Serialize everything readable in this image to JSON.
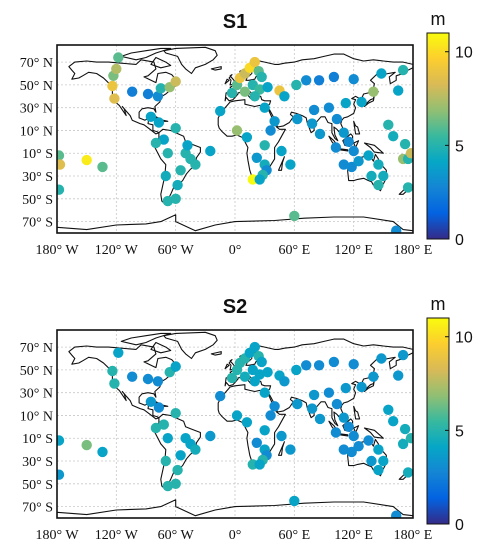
{
  "colorbar": {
    "colormap": "parula",
    "stops": [
      "#352a87",
      "#0363e1",
      "#1485d4",
      "#06a7c6",
      "#38b99e",
      "#92bf73",
      "#d9ba56",
      "#fcce2e",
      "#f9fb0e"
    ],
    "unit": "m",
    "range": [
      0,
      11
    ],
    "ticks": [
      0,
      5,
      10
    ],
    "tick_labels": [
      "0",
      "5",
      "10"
    ]
  },
  "axes": {
    "x_ticks": [
      -180,
      -120,
      -60,
      0,
      60,
      120,
      180
    ],
    "x_tick_labels": [
      "180° W",
      "120° W",
      "60° W",
      "0°",
      "60° E",
      "120° E",
      "180° E"
    ],
    "y_ticks": [
      70,
      50,
      30,
      10,
      -10,
      -30,
      -50,
      -70
    ],
    "y_tick_labels": [
      "70° N",
      "50° N",
      "30° N",
      "10° N",
      "10° S",
      "30° S",
      "50° S",
      "70° S"
    ],
    "xlim": [
      -180,
      180
    ],
    "ylim": [
      -80,
      85
    ],
    "grid": true
  },
  "chart_data": [
    {
      "type": "scatter",
      "title": "S1",
      "xlabel": "",
      "ylabel": "",
      "points": [
        {
          "lon": -178,
          "lat": -12,
          "v": 6
        },
        {
          "lon": -177,
          "lat": -20,
          "v": 8.5
        },
        {
          "lon": -178,
          "lat": -42,
          "v": 5
        },
        {
          "lon": -150,
          "lat": -16,
          "v": 10.5
        },
        {
          "lon": -134,
          "lat": -22,
          "v": 6
        },
        {
          "lon": -124,
          "lat": 49,
          "v": 9
        },
        {
          "lon": -122,
          "lat": 38,
          "v": 8.5
        },
        {
          "lon": -123,
          "lat": 58,
          "v": 6.5
        },
        {
          "lon": -118,
          "lat": 74,
          "v": 6
        },
        {
          "lon": -120,
          "lat": 64,
          "v": 7.5
        },
        {
          "lon": -104,
          "lat": 44,
          "v": 2.5
        },
        {
          "lon": -88,
          "lat": 42,
          "v": 2.5
        },
        {
          "lon": -78,
          "lat": 40,
          "v": 3
        },
        {
          "lon": -75,
          "lat": 47,
          "v": 5
        },
        {
          "lon": -66,
          "lat": 48,
          "v": 7
        },
        {
          "lon": -60,
          "lat": 53,
          "v": 8
        },
        {
          "lon": -85,
          "lat": 22,
          "v": 4
        },
        {
          "lon": -77,
          "lat": 17,
          "v": 4
        },
        {
          "lon": -60,
          "lat": 12,
          "v": 5
        },
        {
          "lon": -72,
          "lat": 2,
          "v": 4
        },
        {
          "lon": -80,
          "lat": -1,
          "v": 5
        },
        {
          "lon": -68,
          "lat": -10,
          "v": 5
        },
        {
          "lon": -50,
          "lat": -10,
          "v": 5
        },
        {
          "lon": -45,
          "lat": -15,
          "v": 5
        },
        {
          "lon": -40,
          "lat": -20,
          "v": 5
        },
        {
          "lon": -55,
          "lat": -25,
          "v": 5
        },
        {
          "lon": -70,
          "lat": -30,
          "v": 4.5
        },
        {
          "lon": -48,
          "lat": -3,
          "v": 4
        },
        {
          "lon": -58,
          "lat": -38,
          "v": 4.5
        },
        {
          "lon": -68,
          "lat": -52,
          "v": 5
        },
        {
          "lon": -60,
          "lat": -50,
          "v": 5
        },
        {
          "lon": -15,
          "lat": 27,
          "v": 4
        },
        {
          "lon": -25,
          "lat": -8,
          "v": 4
        },
        {
          "lon": -3,
          "lat": 43,
          "v": 5
        },
        {
          "lon": 2,
          "lat": 50,
          "v": 6
        },
        {
          "lon": 5,
          "lat": 56,
          "v": 9
        },
        {
          "lon": 10,
          "lat": 60,
          "v": 8
        },
        {
          "lon": 15,
          "lat": 65,
          "v": 10
        },
        {
          "lon": 20,
          "lat": 70,
          "v": 9
        },
        {
          "lon": 24,
          "lat": 62,
          "v": 6
        },
        {
          "lon": 27,
          "lat": 57,
          "v": 5
        },
        {
          "lon": 18,
          "lat": 50,
          "v": 5
        },
        {
          "lon": 25,
          "lat": 46,
          "v": 5.5
        },
        {
          "lon": 10,
          "lat": 44,
          "v": 6.5
        },
        {
          "lon": 20,
          "lat": 40,
          "v": 5
        },
        {
          "lon": 33,
          "lat": 48,
          "v": 4
        },
        {
          "lon": 45,
          "lat": 45,
          "v": 9
        },
        {
          "lon": 50,
          "lat": 40,
          "v": 4
        },
        {
          "lon": 30,
          "lat": 30,
          "v": 4
        },
        {
          "lon": 2,
          "lat": 10,
          "v": 7
        },
        {
          "lon": 12,
          "lat": 4,
          "v": 4
        },
        {
          "lon": 22,
          "lat": -14,
          "v": 3.5
        },
        {
          "lon": 30,
          "lat": -3,
          "v": 5
        },
        {
          "lon": 36,
          "lat": 10,
          "v": 3
        },
        {
          "lon": 40,
          "lat": 18,
          "v": 3.5
        },
        {
          "lon": 47,
          "lat": -8,
          "v": 4
        },
        {
          "lon": 30,
          "lat": -20,
          "v": 4.5
        },
        {
          "lon": 32,
          "lat": -25,
          "v": 3
        },
        {
          "lon": 28,
          "lat": -29,
          "v": 5
        },
        {
          "lon": 18,
          "lat": -33,
          "v": 11
        },
        {
          "lon": 25,
          "lat": -33,
          "v": 4
        },
        {
          "lon": 56,
          "lat": -20,
          "v": 4
        },
        {
          "lon": 63,
          "lat": 20,
          "v": 3.5
        },
        {
          "lon": 62,
          "lat": 50,
          "v": 5
        },
        {
          "lon": 72,
          "lat": 54,
          "v": 3
        },
        {
          "lon": 85,
          "lat": 54,
          "v": 2.5
        },
        {
          "lon": 100,
          "lat": 57,
          "v": 2.5
        },
        {
          "lon": 120,
          "lat": 55,
          "v": 3
        },
        {
          "lon": 140,
          "lat": 44,
          "v": 7
        },
        {
          "lon": 128,
          "lat": 35,
          "v": 4
        },
        {
          "lon": 112,
          "lat": 34,
          "v": 4
        },
        {
          "lon": 95,
          "lat": 30,
          "v": 3
        },
        {
          "lon": 80,
          "lat": 28,
          "v": 3
        },
        {
          "lon": 78,
          "lat": 16,
          "v": 3.5
        },
        {
          "lon": 86,
          "lat": 7,
          "v": 3.5
        },
        {
          "lon": 103,
          "lat": 20,
          "v": 3
        },
        {
          "lon": 110,
          "lat": 8,
          "v": 3.5
        },
        {
          "lon": 115,
          "lat": 0,
          "v": 3
        },
        {
          "lon": 102,
          "lat": -5,
          "v": 3
        },
        {
          "lon": 120,
          "lat": -8,
          "v": 3
        },
        {
          "lon": 110,
          "lat": -20,
          "v": 3
        },
        {
          "lon": 118,
          "lat": -22,
          "v": 3
        },
        {
          "lon": 125,
          "lat": -17,
          "v": 3.5
        },
        {
          "lon": 135,
          "lat": -12,
          "v": 4
        },
        {
          "lon": 145,
          "lat": -20,
          "v": 4.5
        },
        {
          "lon": 150,
          "lat": -30,
          "v": 4.5
        },
        {
          "lon": 145,
          "lat": -38,
          "v": 5
        },
        {
          "lon": 138,
          "lat": -30,
          "v": 4.5
        },
        {
          "lon": 155,
          "lat": 15,
          "v": 5
        },
        {
          "lon": 160,
          "lat": 5,
          "v": 4.5
        },
        {
          "lon": 170,
          "lat": -15,
          "v": 7
        },
        {
          "lon": 175,
          "lat": -40,
          "v": 5
        },
        {
          "lon": 172,
          "lat": -2,
          "v": 5
        },
        {
          "lon": 175,
          "lat": -15,
          "v": 5
        },
        {
          "lon": 178,
          "lat": -10,
          "v": 8
        },
        {
          "lon": 165,
          "lat": 45,
          "v": 4
        },
        {
          "lon": 148,
          "lat": 60,
          "v": 4
        },
        {
          "lon": 170,
          "lat": 63,
          "v": 5
        },
        {
          "lon": 60,
          "lat": -65,
          "v": 6
        },
        {
          "lon": 163,
          "lat": -78,
          "v": 3
        }
      ]
    },
    {
      "type": "scatter",
      "title": "S2",
      "xlabel": "",
      "ylabel": "",
      "points": [
        {
          "lon": -178,
          "lat": -12,
          "v": 4
        },
        {
          "lon": -178,
          "lat": -42,
          "v": 3.5
        },
        {
          "lon": -150,
          "lat": -16,
          "v": 6.5
        },
        {
          "lon": -134,
          "lat": -22,
          "v": 4
        },
        {
          "lon": -124,
          "lat": 49,
          "v": 5
        },
        {
          "lon": -122,
          "lat": 38,
          "v": 5
        },
        {
          "lon": -118,
          "lat": 65,
          "v": 4
        },
        {
          "lon": -104,
          "lat": 44,
          "v": 3
        },
        {
          "lon": -88,
          "lat": 42,
          "v": 3
        },
        {
          "lon": -78,
          "lat": 40,
          "v": 3
        },
        {
          "lon": -66,
          "lat": 48,
          "v": 5
        },
        {
          "lon": -60,
          "lat": 53,
          "v": 4
        },
        {
          "lon": -85,
          "lat": 22,
          "v": 3.5
        },
        {
          "lon": -77,
          "lat": 17,
          "v": 3
        },
        {
          "lon": -60,
          "lat": 12,
          "v": 5
        },
        {
          "lon": -72,
          "lat": 2,
          "v": 5
        },
        {
          "lon": -80,
          "lat": -1,
          "v": 5
        },
        {
          "lon": -68,
          "lat": -10,
          "v": 4
        },
        {
          "lon": -50,
          "lat": -10,
          "v": 4
        },
        {
          "lon": -45,
          "lat": -15,
          "v": 4
        },
        {
          "lon": -40,
          "lat": -20,
          "v": 4.5
        },
        {
          "lon": -55,
          "lat": -25,
          "v": 4
        },
        {
          "lon": -70,
          "lat": -30,
          "v": 5
        },
        {
          "lon": -58,
          "lat": -38,
          "v": 5
        },
        {
          "lon": -68,
          "lat": -52,
          "v": 5
        },
        {
          "lon": -60,
          "lat": -50,
          "v": 5
        },
        {
          "lon": -15,
          "lat": 27,
          "v": 3
        },
        {
          "lon": -25,
          "lat": -8,
          "v": 3.5
        },
        {
          "lon": -3,
          "lat": 43,
          "v": 5
        },
        {
          "lon": 2,
          "lat": 50,
          "v": 5
        },
        {
          "lon": 5,
          "lat": 56,
          "v": 5
        },
        {
          "lon": 10,
          "lat": 60,
          "v": 5
        },
        {
          "lon": 15,
          "lat": 65,
          "v": 4
        },
        {
          "lon": 20,
          "lat": 70,
          "v": 4
        },
        {
          "lon": 24,
          "lat": 62,
          "v": 5
        },
        {
          "lon": 27,
          "lat": 57,
          "v": 4
        },
        {
          "lon": 18,
          "lat": 50,
          "v": 4
        },
        {
          "lon": 25,
          "lat": 46,
          "v": 4
        },
        {
          "lon": 10,
          "lat": 44,
          "v": 4.5
        },
        {
          "lon": 20,
          "lat": 40,
          "v": 4
        },
        {
          "lon": 33,
          "lat": 48,
          "v": 4
        },
        {
          "lon": 45,
          "lat": 45,
          "v": 4
        },
        {
          "lon": 50,
          "lat": 40,
          "v": 3.5
        },
        {
          "lon": 30,
          "lat": 30,
          "v": 4
        },
        {
          "lon": 2,
          "lat": 10,
          "v": 4
        },
        {
          "lon": 12,
          "lat": 4,
          "v": 4
        },
        {
          "lon": 22,
          "lat": -14,
          "v": 3
        },
        {
          "lon": 30,
          "lat": -3,
          "v": 4
        },
        {
          "lon": 36,
          "lat": 10,
          "v": 3
        },
        {
          "lon": 40,
          "lat": 18,
          "v": 3
        },
        {
          "lon": 47,
          "lat": -8,
          "v": 3.5
        },
        {
          "lon": 30,
          "lat": -20,
          "v": 4
        },
        {
          "lon": 32,
          "lat": -25,
          "v": 3
        },
        {
          "lon": 28,
          "lat": -29,
          "v": 5
        },
        {
          "lon": 18,
          "lat": -33,
          "v": 5
        },
        {
          "lon": 25,
          "lat": -33,
          "v": 4
        },
        {
          "lon": 56,
          "lat": -20,
          "v": 3.5
        },
        {
          "lon": 63,
          "lat": 20,
          "v": 3.5
        },
        {
          "lon": 62,
          "lat": 50,
          "v": 4
        },
        {
          "lon": 72,
          "lat": 54,
          "v": 3
        },
        {
          "lon": 85,
          "lat": 54,
          "v": 3
        },
        {
          "lon": 100,
          "lat": 57,
          "v": 3
        },
        {
          "lon": 120,
          "lat": 55,
          "v": 3
        },
        {
          "lon": 140,
          "lat": 44,
          "v": 3.5
        },
        {
          "lon": 128,
          "lat": 35,
          "v": 3.5
        },
        {
          "lon": 112,
          "lat": 34,
          "v": 3.5
        },
        {
          "lon": 95,
          "lat": 30,
          "v": 3
        },
        {
          "lon": 80,
          "lat": 28,
          "v": 3.5
        },
        {
          "lon": 78,
          "lat": 16,
          "v": 3.5
        },
        {
          "lon": 86,
          "lat": 7,
          "v": 3.5
        },
        {
          "lon": 103,
          "lat": 20,
          "v": 3
        },
        {
          "lon": 110,
          "lat": 8,
          "v": 3.5
        },
        {
          "lon": 115,
          "lat": 0,
          "v": 3
        },
        {
          "lon": 102,
          "lat": -5,
          "v": 3
        },
        {
          "lon": 120,
          "lat": -8,
          "v": 3
        },
        {
          "lon": 110,
          "lat": -20,
          "v": 3
        },
        {
          "lon": 118,
          "lat": -22,
          "v": 3
        },
        {
          "lon": 125,
          "lat": -17,
          "v": 3
        },
        {
          "lon": 135,
          "lat": -12,
          "v": 3
        },
        {
          "lon": 145,
          "lat": -20,
          "v": 4
        },
        {
          "lon": 150,
          "lat": -30,
          "v": 4
        },
        {
          "lon": 145,
          "lat": -38,
          "v": 4
        },
        {
          "lon": 138,
          "lat": -30,
          "v": 3.5
        },
        {
          "lon": 155,
          "lat": 15,
          "v": 4
        },
        {
          "lon": 160,
          "lat": 5,
          "v": 4
        },
        {
          "lon": 170,
          "lat": -15,
          "v": 4.5
        },
        {
          "lon": 175,
          "lat": -40,
          "v": 4.5
        },
        {
          "lon": 172,
          "lat": -2,
          "v": 4.5
        },
        {
          "lon": 178,
          "lat": -10,
          "v": 5
        },
        {
          "lon": 165,
          "lat": 45,
          "v": 3.5
        },
        {
          "lon": 148,
          "lat": 60,
          "v": 3.5
        },
        {
          "lon": 170,
          "lat": 63,
          "v": 3.5
        },
        {
          "lon": 60,
          "lat": -65,
          "v": 4
        },
        {
          "lon": 163,
          "lat": -78,
          "v": 3
        }
      ]
    }
  ]
}
